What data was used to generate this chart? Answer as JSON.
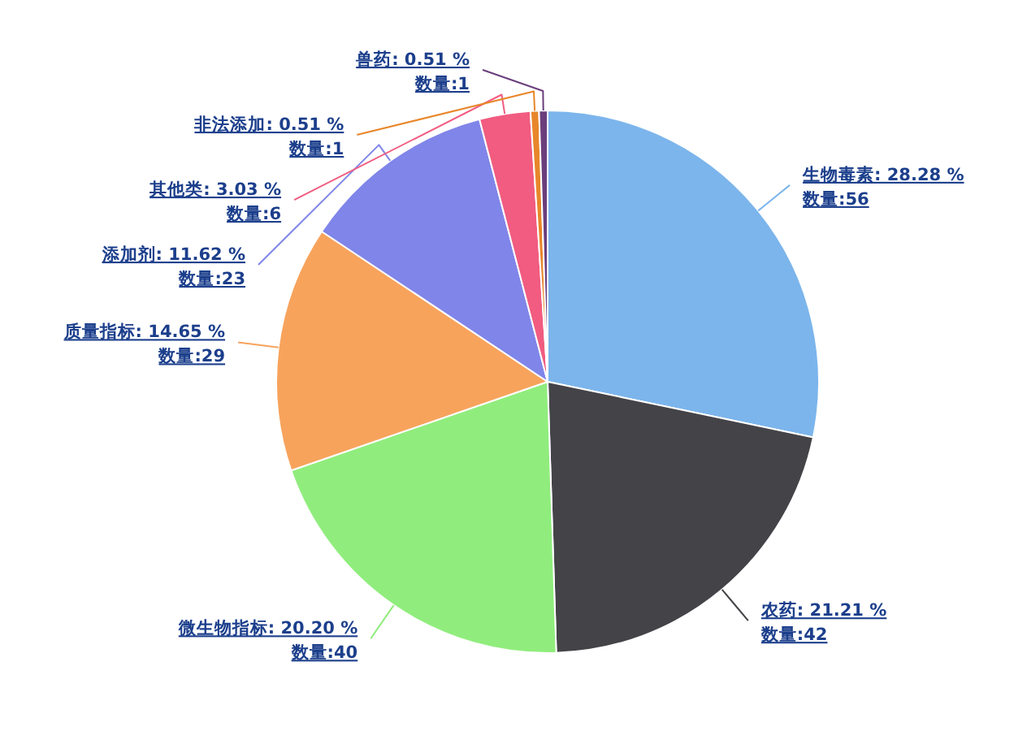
{
  "chart_data": {
    "type": "pie",
    "categories": [
      "生物毒素",
      "农药",
      "微生物指标",
      "质量指标",
      "添加剂",
      "其他类",
      "非法添加",
      "兽药"
    ],
    "values": [
      56,
      42,
      40,
      29,
      23,
      6,
      1,
      1
    ],
    "value_labels": [
      "28.28 %\n数量:56",
      "21.21 %\n数量:42",
      "20.20 %\n数量:40",
      "14.65 %\n数量:29",
      "11.62 %\n数量:23",
      "3.03 %\n数量:6",
      "0.51 %\n数量:1",
      "0.51 %\n数量:1"
    ],
    "colors": [
      "#7cb5ec",
      "#434348",
      "#90ed7d",
      "#f7a35c",
      "#8085e9",
      "#f15c80",
      "#e8862a",
      "#6b3e7c"
    ]
  }
}
